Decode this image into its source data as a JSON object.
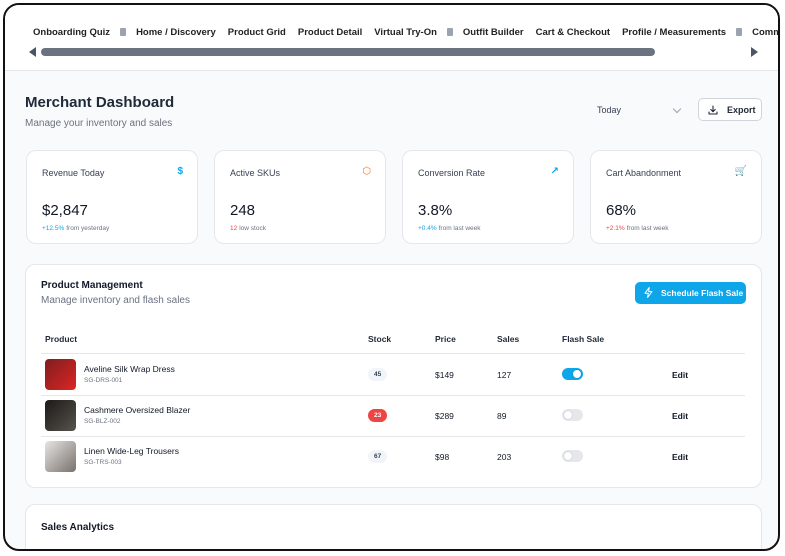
{
  "tabs": [
    {
      "label": "Onboarding Quiz",
      "has_icon": true
    },
    {
      "label": "Home / Discovery",
      "has_icon": false
    },
    {
      "label": "Product Grid",
      "has_icon": false
    },
    {
      "label": "Product Detail",
      "has_icon": false
    },
    {
      "label": "Virtual Try-On",
      "has_icon": true
    },
    {
      "label": "Outfit Builder",
      "has_icon": false
    },
    {
      "label": "Cart & Checkout",
      "has_icon": false
    },
    {
      "label": "Profile / Measurements",
      "has_icon": true
    },
    {
      "label": "Community Fee",
      "has_icon": false
    }
  ],
  "header": {
    "title": "Merchant Dashboard",
    "subtitle": "Manage your inventory and sales",
    "period": "Today",
    "export_label": "Export"
  },
  "stats": [
    {
      "label": "Revenue Today",
      "icon": "dollar-icon",
      "glyph": "$",
      "icon_color": "#0ea5e9",
      "value": "$2,847",
      "delta": "+12.5%",
      "delta_color": "#0ea5e9",
      "note": "from yesterday"
    },
    {
      "label": "Active SKUs",
      "icon": "box-icon",
      "glyph": "⬡",
      "icon_color": "#f97316",
      "value": "248",
      "delta": "12",
      "delta_color": "#ef4444",
      "note": "low stock"
    },
    {
      "label": "Conversion Rate",
      "icon": "trend-up-icon",
      "glyph": "↗",
      "icon_color": "#0ea5e9",
      "value": "3.8%",
      "delta": "+0.4%",
      "delta_color": "#0ea5e9",
      "note": "from last week"
    },
    {
      "label": "Cart Abandonment",
      "icon": "cart-icon",
      "glyph": "🛒",
      "icon_color": "#374151",
      "value": "68%",
      "delta": "+2.1%",
      "delta_color": "#ef4444",
      "note": "from last week"
    }
  ],
  "products": {
    "title": "Product Management",
    "subtitle": "Manage inventory and flash sales",
    "flash_button": "Schedule Flash Sale",
    "columns": [
      "Product",
      "Stock",
      "Price",
      "Sales",
      "Flash Sale"
    ],
    "rows": [
      {
        "name": "Aveline Silk Wrap Dress",
        "sku": "SG-DRS-001",
        "stock": "45",
        "stock_low": false,
        "price": "$149",
        "sales": "127",
        "flash": true,
        "edit": "Edit",
        "thumb": [
          "#7f1d1d",
          "#dc2626"
        ]
      },
      {
        "name": "Cashmere Oversized Blazer",
        "sku": "SG-BLZ-002",
        "stock": "23",
        "stock_low": true,
        "price": "$289",
        "sales": "89",
        "flash": false,
        "edit": "Edit",
        "thumb": [
          "#1c1917",
          "#57534e"
        ]
      },
      {
        "name": "Linen Wide-Leg Trousers",
        "sku": "SG-TRS-003",
        "stock": "67",
        "stock_low": false,
        "price": "$98",
        "sales": "203",
        "flash": false,
        "edit": "Edit",
        "thumb": [
          "#e7e5e4",
          "#78716c"
        ]
      }
    ]
  },
  "analytics": {
    "title": "Sales Analytics"
  }
}
